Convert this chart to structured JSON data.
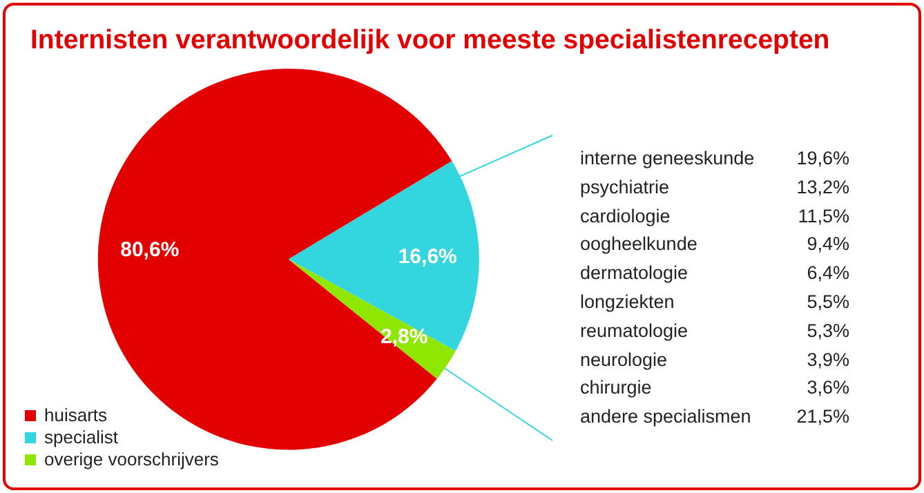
{
  "chart_data": [
    {
      "type": "pie",
      "title": "Internisten verantwoordelijk voor meeste specialistenrecepten",
      "categories": [
        "huisarts",
        "specialist",
        "overige voorschrijvers"
      ],
      "values": [
        80.6,
        16.6,
        2.8
      ],
      "value_labels": [
        "80,6%",
        "16,6%",
        "2,8%"
      ],
      "colors": [
        "#e30000",
        "#33d6de",
        "#8fe600"
      ],
      "legend": "bottom left"
    },
    {
      "type": "other",
      "categories": [
        "interne geneeskunde",
        "psychiatrie",
        "cardiologie",
        "oogheelkunde",
        "dermatologie",
        "longziekten",
        "reumatologie",
        "neurologie",
        "chirurgie",
        "andere specialismen"
      ],
      "value_labels": [
        "19,6%",
        "13,2%",
        "11,5%",
        "9,4%",
        "6,4%",
        "5,5%",
        "5,3%",
        "3,9%",
        "3,6%",
        "21,5%"
      ]
    }
  ]
}
